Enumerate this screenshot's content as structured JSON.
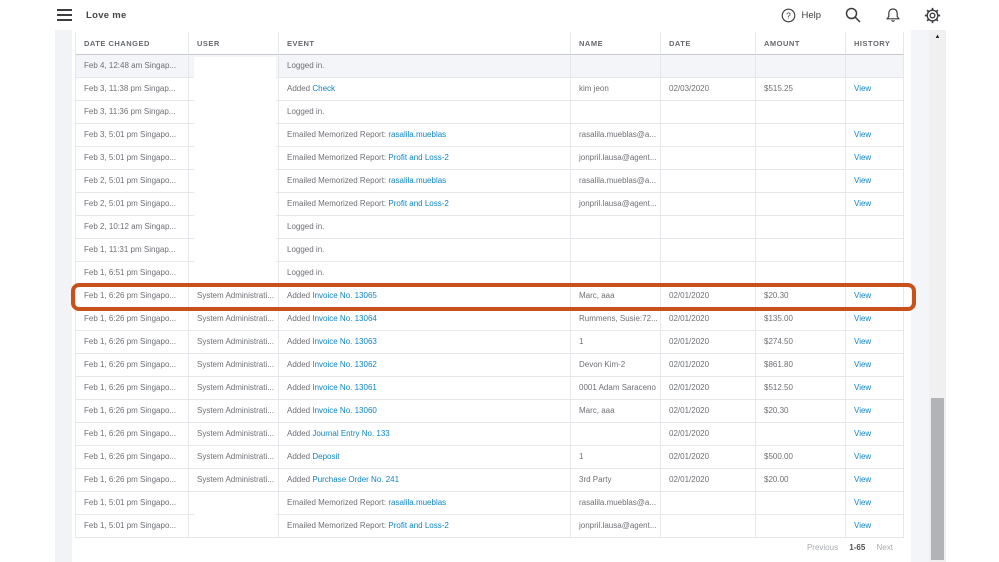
{
  "app": {
    "title": "Love me"
  },
  "header": {
    "help_label": "Help"
  },
  "colors": {
    "highlight_border": "#c8511b",
    "link_blue": "#0c85cc",
    "selected_row_bg": "#f4f5f8"
  },
  "table": {
    "columns": [
      "DATE CHANGED",
      "USER",
      "EVENT",
      "NAME",
      "DATE",
      "AMOUNT",
      "HISTORY"
    ],
    "rows": [
      {
        "date_changed": "Feb 4, 12:48 am Singap...",
        "user": "",
        "user_redacted": true,
        "event_prefix": "Logged in.",
        "event_link": "",
        "name": "",
        "date": "",
        "amount": "",
        "history": "",
        "selected": true
      },
      {
        "date_changed": "Feb 3, 11:38 pm Singap...",
        "user": "",
        "user_redacted": true,
        "event_prefix": "Added ",
        "event_link": "Check",
        "name": "kim jeon",
        "date": "02/03/2020",
        "amount": "$515.25",
        "history": "View",
        "selected": false
      },
      {
        "date_changed": "Feb 3, 11:36 pm Singap...",
        "user": "",
        "user_redacted": true,
        "event_prefix": "Logged in.",
        "event_link": "",
        "name": "",
        "date": "",
        "amount": "",
        "history": "",
        "selected": false
      },
      {
        "date_changed": "Feb 3, 5:01 pm Singapo...",
        "user": "",
        "user_redacted": true,
        "event_prefix": "Emailed Memorized Report: ",
        "event_link": "rasalila.mueblas",
        "name": "rasalila.mueblas@a...",
        "date": "",
        "amount": "",
        "history": "View",
        "selected": false
      },
      {
        "date_changed": "Feb 3, 5:01 pm Singapo...",
        "user": "",
        "user_redacted": true,
        "event_prefix": "Emailed Memorized Report: ",
        "event_link": "Profit and Loss-2",
        "name": "jonpril.lausa@agent...",
        "date": "",
        "amount": "",
        "history": "View",
        "selected": false
      },
      {
        "date_changed": "Feb 2, 5:01 pm Singapo...",
        "user": "",
        "user_redacted": true,
        "event_prefix": "Emailed Memorized Report: ",
        "event_link": "rasalila.mueblas",
        "name": "rasalila.mueblas@a...",
        "date": "",
        "amount": "",
        "history": "View",
        "selected": false
      },
      {
        "date_changed": "Feb 2, 5:01 pm Singapo...",
        "user": "",
        "user_redacted": true,
        "event_prefix": "Emailed Memorized Report: ",
        "event_link": "Profit and Loss-2",
        "name": "jonpril.lausa@agent...",
        "date": "",
        "amount": "",
        "history": "View",
        "selected": false
      },
      {
        "date_changed": "Feb 2, 10:12 am Singap...",
        "user": "",
        "user_redacted": true,
        "event_prefix": "Logged in.",
        "event_link": "",
        "name": "",
        "date": "",
        "amount": "",
        "history": "",
        "selected": false
      },
      {
        "date_changed": "Feb 1, 11:31 pm Singap...",
        "user": "",
        "user_redacted": true,
        "event_prefix": "Logged in.",
        "event_link": "",
        "name": "",
        "date": "",
        "amount": "",
        "history": "",
        "selected": false
      },
      {
        "date_changed": "Feb 1, 6:51 pm Singapo...",
        "user": "",
        "user_redacted": true,
        "event_prefix": "Logged in.",
        "event_link": "",
        "name": "",
        "date": "",
        "amount": "",
        "history": "",
        "selected": false
      },
      {
        "date_changed": "Feb 1, 6:26 pm Singapo...",
        "user": "System Administrati...",
        "user_redacted": false,
        "event_prefix": "Added ",
        "event_link": "Invoice No. 13065",
        "name": "Marc, aaa",
        "date": "02/01/2020",
        "amount": "$20.30",
        "history": "View",
        "selected": false
      },
      {
        "date_changed": "Feb 1, 6:26 pm Singapo...",
        "user": "System Administrati...",
        "user_redacted": false,
        "event_prefix": "Added ",
        "event_link": "Invoice No. 13064",
        "name": "Rummens, Susie:72...",
        "date": "02/01/2020",
        "amount": "$135.00",
        "history": "View",
        "selected": false
      },
      {
        "date_changed": "Feb 1, 6:26 pm Singapo...",
        "user": "System Administrati...",
        "user_redacted": false,
        "event_prefix": "Added ",
        "event_link": "Invoice No. 13063",
        "name": "1",
        "date": "02/01/2020",
        "amount": "$274.50",
        "history": "View",
        "selected": false
      },
      {
        "date_changed": "Feb 1, 6:26 pm Singapo...",
        "user": "System Administrati...",
        "user_redacted": false,
        "event_prefix": "Added ",
        "event_link": "Invoice No. 13062",
        "name": "Devon Kim-2",
        "date": "02/01/2020",
        "amount": "$861.80",
        "history": "View",
        "selected": false
      },
      {
        "date_changed": "Feb 1, 6:26 pm Singapo...",
        "user": "System Administrati...",
        "user_redacted": false,
        "event_prefix": "Added ",
        "event_link": "Invoice No. 13061",
        "name": "0001 Adam Saraceno",
        "date": "02/01/2020",
        "amount": "$512.50",
        "history": "View",
        "selected": false
      },
      {
        "date_changed": "Feb 1, 6:26 pm Singapo...",
        "user": "System Administrati...",
        "user_redacted": false,
        "event_prefix": "Added ",
        "event_link": "Invoice No. 13060",
        "name": "Marc, aaa",
        "date": "02/01/2020",
        "amount": "$20.30",
        "history": "View",
        "selected": false
      },
      {
        "date_changed": "Feb 1, 6:26 pm Singapo...",
        "user": "System Administrati...",
        "user_redacted": false,
        "event_prefix": "Added ",
        "event_link": "Journal Entry No. 133",
        "name": "",
        "date": "02/01/2020",
        "amount": "",
        "history": "View",
        "selected": false
      },
      {
        "date_changed": "Feb 1, 6:26 pm Singapo...",
        "user": "System Administrati...",
        "user_redacted": false,
        "event_prefix": "Added ",
        "event_link": "Deposit",
        "name": "1",
        "date": "02/01/2020",
        "amount": "$500.00",
        "history": "View",
        "selected": false
      },
      {
        "date_changed": "Feb 1, 6:26 pm Singapo...",
        "user": "System Administrati...",
        "user_redacted": false,
        "event_prefix": "Added ",
        "event_link": "Purchase Order No. 241",
        "name": "3rd Party",
        "date": "02/01/2020",
        "amount": "$20.00",
        "history": "View",
        "selected": false
      },
      {
        "date_changed": "Feb 1, 5:01 pm Singapo...",
        "user": "",
        "user_redacted": true,
        "event_prefix": "Emailed Memorized Report: ",
        "event_link": "rasalila.mueblas",
        "name": "rasalila.mueblas@a...",
        "date": "",
        "amount": "",
        "history": "View",
        "selected": false
      },
      {
        "date_changed": "Feb 1, 5:01 pm Singapo...",
        "user": "",
        "user_redacted": true,
        "event_prefix": "Emailed Memorized Report: ",
        "event_link": "Profit and Loss-2",
        "name": "jonpril.lausa@agent...",
        "date": "",
        "amount": "",
        "history": "View",
        "selected": false
      }
    ]
  },
  "pagination": {
    "previous": "Previous",
    "range": "1-65",
    "next": "Next"
  }
}
